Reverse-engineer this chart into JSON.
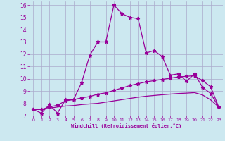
{
  "xlabel": "Windchill (Refroidissement éolien,°C)",
  "background_color": "#cce8f0",
  "grid_color": "#aaaacc",
  "line_color": "#990099",
  "xlim": [
    -0.5,
    23.5
  ],
  "ylim": [
    7,
    16.3
  ],
  "x_ticks": [
    0,
    1,
    2,
    3,
    4,
    5,
    6,
    7,
    8,
    9,
    10,
    11,
    12,
    13,
    14,
    15,
    16,
    17,
    18,
    19,
    20,
    21,
    22,
    23
  ],
  "y_ticks": [
    7,
    8,
    9,
    10,
    11,
    12,
    13,
    14,
    15,
    16
  ],
  "line1_x": [
    0,
    1,
    2,
    3,
    4,
    5,
    6,
    7,
    8,
    9,
    10,
    11,
    12,
    13,
    14,
    15,
    16,
    17,
    18,
    19,
    20,
    21,
    22,
    23
  ],
  "line1_y": [
    7.5,
    7.2,
    7.9,
    7.2,
    8.3,
    8.3,
    9.7,
    11.9,
    13.0,
    13.0,
    16.0,
    15.3,
    15.0,
    14.9,
    12.1,
    12.3,
    11.8,
    10.3,
    10.4,
    9.8,
    10.4,
    9.3,
    8.8,
    7.7
  ],
  "line2_x": [
    0,
    1,
    2,
    3,
    4,
    5,
    6,
    7,
    8,
    9,
    10,
    11,
    12,
    13,
    14,
    15,
    16,
    17,
    18,
    19,
    20,
    21,
    22,
    23
  ],
  "line2_y": [
    7.5,
    7.5,
    7.7,
    7.85,
    8.2,
    8.3,
    8.45,
    8.55,
    8.75,
    8.85,
    9.05,
    9.25,
    9.45,
    9.6,
    9.75,
    9.85,
    9.95,
    10.05,
    10.15,
    10.2,
    10.25,
    9.85,
    9.35,
    7.7
  ],
  "line3_x": [
    0,
    1,
    2,
    3,
    4,
    5,
    6,
    7,
    8,
    9,
    10,
    11,
    12,
    13,
    14,
    15,
    16,
    17,
    18,
    19,
    20,
    21,
    22,
    23
  ],
  "line3_y": [
    7.5,
    7.5,
    7.6,
    7.7,
    7.78,
    7.82,
    7.9,
    7.95,
    8.0,
    8.1,
    8.2,
    8.3,
    8.4,
    8.5,
    8.58,
    8.64,
    8.7,
    8.75,
    8.8,
    8.83,
    8.87,
    8.68,
    8.28,
    7.7
  ]
}
